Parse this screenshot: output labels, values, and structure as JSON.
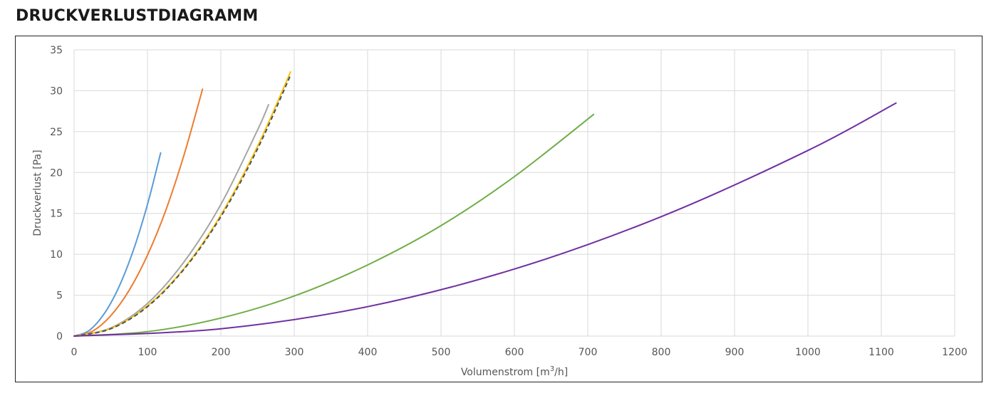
{
  "title": "DRUCKVERLUSTDIAGRAMM",
  "chart_data": {
    "type": "line",
    "xlabel": "Volumenstrom [m³/h]",
    "ylabel": "Druckverlust [Pa]",
    "xlim": [
      0,
      1200
    ],
    "ylim": [
      0,
      35
    ],
    "x_ticks": [
      "0",
      "100",
      "200",
      "300",
      "400",
      "500",
      "600",
      "700",
      "800",
      "900",
      "1000",
      "1100",
      "1200"
    ],
    "y_ticks": [
      "0",
      "5",
      "10",
      "15",
      "20",
      "25",
      "30",
      "35"
    ],
    "grid": true,
    "legend": "none",
    "series": [
      {
        "color": "#5b9bd5",
        "dashed": false,
        "x": [
          0,
          20,
          40,
          60,
          80,
          100,
          118
        ],
        "y": [
          0,
          0.65,
          2.6,
          5.8,
          10.3,
          16.1,
          22.4
        ]
      },
      {
        "color": "#ed7d31",
        "dashed": false,
        "x": [
          0,
          25,
          50,
          75,
          100,
          125,
          150,
          175
        ],
        "y": [
          0,
          0.6,
          2.5,
          5.6,
          9.9,
          15.4,
          22.2,
          30.2
        ]
      },
      {
        "color": "#a5a5a5",
        "dashed": false,
        "x": [
          0,
          50,
          100,
          150,
          200,
          250,
          265
        ],
        "y": [
          0,
          1.0,
          4.0,
          9.1,
          16.1,
          25.2,
          28.3
        ]
      },
      {
        "color": "#ffc000",
        "dashed": false,
        "x": [
          0,
          50,
          100,
          150,
          200,
          250,
          295
        ],
        "y": [
          0,
          0.93,
          3.7,
          8.3,
          14.8,
          23.2,
          32.3
        ]
      },
      {
        "color": "#44546a",
        "dashed": true,
        "x": [
          0,
          50,
          100,
          150,
          200,
          250,
          295
        ],
        "y": [
          0,
          0.9,
          3.6,
          8.2,
          14.6,
          22.9,
          31.9
        ]
      },
      {
        "color": "#70ad47",
        "dashed": false,
        "x": [
          0,
          100,
          200,
          300,
          400,
          500,
          600,
          708
        ],
        "y": [
          0,
          0.54,
          2.2,
          4.9,
          8.7,
          13.5,
          19.5,
          27.1
        ]
      },
      {
        "color": "#7030a0",
        "dashed": false,
        "x": [
          0,
          200,
          400,
          600,
          800,
          1000,
          1120
        ],
        "y": [
          0,
          0.9,
          3.6,
          8.2,
          14.6,
          22.7,
          28.5
        ]
      }
    ]
  }
}
